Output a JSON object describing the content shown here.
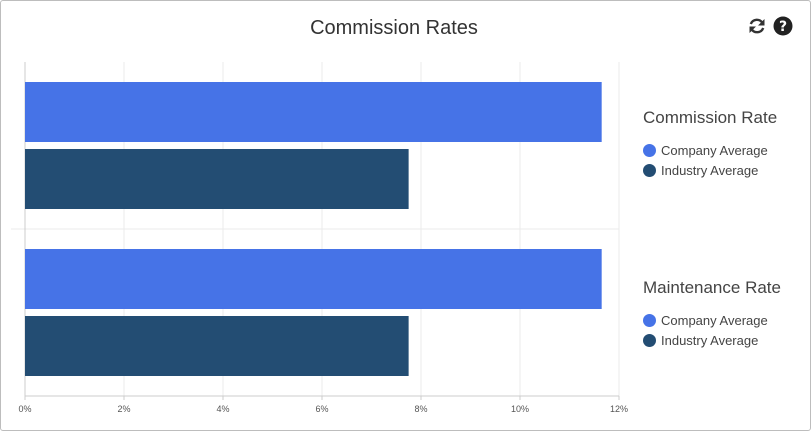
{
  "chart_data": {
    "type": "bar",
    "orientation": "horizontal",
    "title": "Commission Rates",
    "xlim": [
      0,
      12
    ],
    "x_ticks": [
      "0%",
      "2%",
      "4%",
      "6%",
      "8%",
      "10%",
      "12%"
    ],
    "grid": true,
    "groups": [
      {
        "legend_title": "Commission Rate",
        "series": [
          {
            "name": "Company Average",
            "value": 11.65,
            "color": "#4673E7"
          },
          {
            "name": "Industry Average",
            "value": 7.75,
            "color": "#234D73"
          }
        ]
      },
      {
        "legend_title": "Maintenance Rate",
        "series": [
          {
            "name": "Company Average",
            "value": 11.65,
            "color": "#4673E7"
          },
          {
            "name": "Industry Average",
            "value": 7.75,
            "color": "#234D73"
          }
        ]
      }
    ],
    "legend_position": "right"
  },
  "icons": {
    "refresh": "refresh-icon",
    "help": "help-icon"
  }
}
